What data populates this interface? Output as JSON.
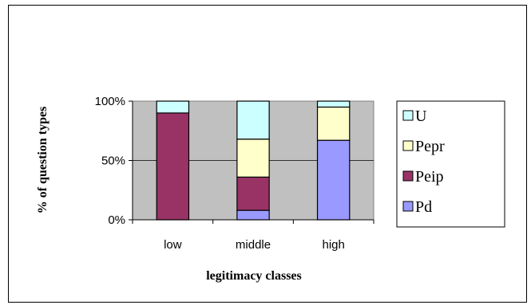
{
  "chart_data": {
    "type": "bar",
    "stacked": true,
    "percent": true,
    "categories": [
      "low",
      "middle",
      "high"
    ],
    "series": [
      {
        "name": "Pd",
        "values": [
          0,
          8,
          67
        ],
        "color": "#9999ff"
      },
      {
        "name": "Peip",
        "values": [
          90,
          28,
          0
        ],
        "color": "#993366"
      },
      {
        "name": "Pepr",
        "values": [
          0,
          32,
          28
        ],
        "color": "#ffffcc"
      },
      {
        "name": "U",
        "values": [
          10,
          32,
          5
        ],
        "color": "#ccffff"
      }
    ],
    "yticks": [
      "0%",
      "50%",
      "100%"
    ],
    "ylim": [
      0,
      100
    ],
    "xlabel": "legitimacy classes",
    "ylabel": "% of question types",
    "legend_order": [
      "U",
      "Pepr",
      "Peip",
      "Pd"
    ],
    "legend_position": "right",
    "plot_background": "#c0c0c0",
    "grid": true
  }
}
